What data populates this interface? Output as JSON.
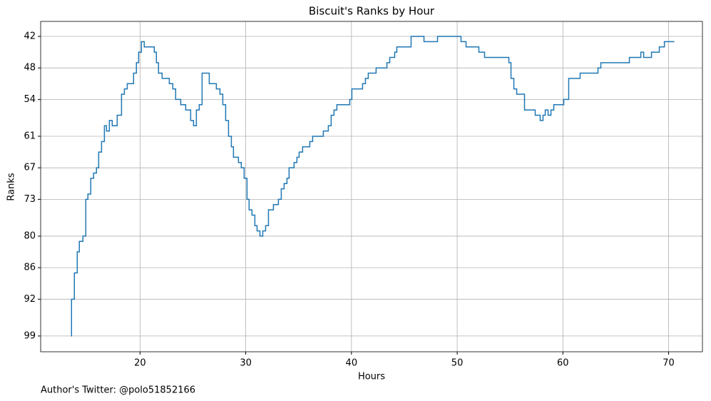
{
  "chart_data": {
    "type": "line",
    "step": "post",
    "title": "Biscuit's Ranks by Hour",
    "x_label": "Hours",
    "y_label": "Ranks",
    "annotations": [
      "Author's Twitter: @polo51852166"
    ],
    "color": "#1f77b4",
    "grid": true,
    "xlim": [
      10.6,
      73.2
    ],
    "ylim": [
      102,
      39.15
    ],
    "xticks": [
      20,
      30,
      40,
      50,
      60,
      70
    ],
    "yticks": [
      42,
      48,
      54,
      61,
      67,
      73,
      80,
      86,
      92,
      99
    ],
    "x": [
      13.49,
      13.52,
      13.79,
      14.06,
      14.26,
      14.6,
      14.87,
      15.07,
      15.34,
      15.61,
      15.88,
      16.09,
      16.36,
      16.63,
      16.83,
      17.1,
      17.37,
      17.84,
      18.25,
      18.52,
      18.79,
      19.39,
      19.66,
      19.87,
      20.13,
      20.4,
      21.35,
      21.55,
      21.75,
      22.09,
      22.77,
      23.1,
      23.37,
      23.85,
      24.32,
      24.79,
      25.06,
      25.33,
      25.6,
      25.87,
      26.55,
      27.22,
      27.56,
      27.83,
      28.1,
      28.37,
      28.64,
      28.84,
      29.31,
      29.58,
      29.85,
      30.12,
      30.32,
      30.59,
      30.86,
      31.07,
      31.34,
      31.61,
      31.88,
      32.15,
      32.62,
      33.09,
      33.36,
      33.63,
      33.9,
      34.1,
      34.57,
      34.84,
      35.05,
      35.38,
      36.06,
      36.33,
      37.34,
      37.81,
      38.08,
      38.35,
      38.62,
      39.84,
      40.04,
      41.05,
      41.32,
      41.59,
      42.33,
      43.35,
      43.62,
      44.09,
      44.29,
      45.64,
      46.86,
      48.14,
      50.36,
      50.84,
      52.05,
      52.59,
      54.89,
      55.09,
      55.36,
      55.63,
      56.37,
      57.38,
      57.85,
      58.12,
      58.33,
      58.6,
      58.87,
      59.14,
      60.08,
      60.55,
      61.63,
      63.32,
      63.59,
      66.29,
      67.37,
      67.64,
      68.38,
      69.12,
      69.6,
      70.54
    ],
    "values": [
      99,
      92,
      87,
      83,
      81,
      80,
      73,
      72,
      69,
      68,
      67,
      64,
      62,
      59,
      60,
      58,
      59,
      57,
      53,
      52,
      51,
      49,
      47,
      45,
      43,
      44,
      45,
      47,
      49,
      50,
      51,
      52,
      54,
      55,
      56,
      58,
      59,
      56,
      55,
      49,
      51,
      52,
      53,
      55,
      58,
      61,
      63,
      65,
      66,
      67,
      69,
      73,
      75,
      76,
      78,
      79,
      80,
      79,
      78,
      75,
      74,
      73,
      71,
      70,
      69,
      67,
      66,
      65,
      64,
      63,
      62,
      61,
      60,
      59,
      57,
      56,
      55,
      54,
      52,
      51,
      50,
      49,
      48,
      47,
      46,
      45,
      44,
      42,
      43,
      42,
      43,
      44,
      45,
      46,
      47,
      50,
      52,
      53,
      56,
      57,
      58,
      57,
      56,
      57,
      56,
      55,
      54,
      50,
      49,
      48,
      47,
      46,
      45,
      46,
      45,
      44,
      43,
      43
    ]
  }
}
